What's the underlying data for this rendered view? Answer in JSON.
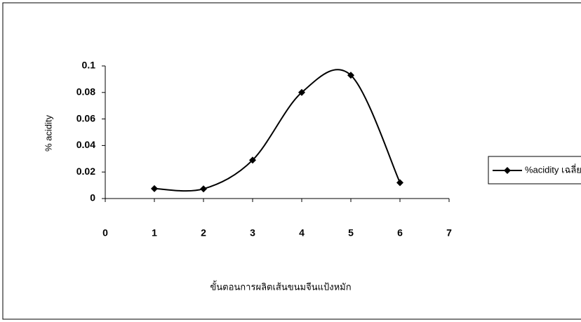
{
  "chart_data": {
    "type": "line",
    "x_label": "ขั้นตอนการผลิตเส้นขนมจีนแป้งหมัก",
    "y_label": "% acidity",
    "x": [
      1,
      2,
      3,
      4,
      5,
      6
    ],
    "series": [
      {
        "name": "%acidity เฉลี่ย",
        "color": "#000000",
        "values": [
          0.0075,
          0.0073,
          0.029,
          0.08,
          0.093,
          0.012
        ]
      }
    ],
    "xlim": [
      0,
      7
    ],
    "xticks": [
      0,
      1,
      2,
      3,
      4,
      5,
      6,
      7
    ],
    "ylim": [
      0,
      0.1
    ],
    "yticks": [
      0,
      0.02,
      0.04,
      0.06,
      0.08,
      0.1
    ],
    "smooth": true,
    "legend": "right"
  }
}
